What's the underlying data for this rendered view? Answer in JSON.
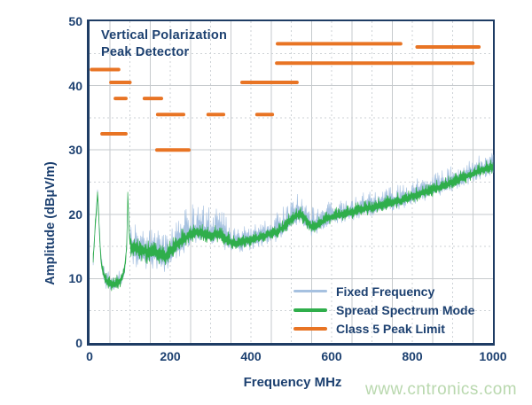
{
  "colors": {
    "navy_text": "#1c4070",
    "border": "#1e3c64",
    "orange": "#e87424",
    "green": "#2fae4b",
    "blue": "#a6c1e0",
    "grid_solid": "#c6cacd",
    "grid_dashed": "#cdd2d6",
    "watermark": "#b9d8ae",
    "background": "#ffffff"
  },
  "watermark_text": "www.cntronics.com",
  "chart_data": {
    "type": "line",
    "title_lines": [
      "Vertical Polarization",
      "Peak Detector"
    ],
    "xlabel": "Frequency MHz",
    "ylabel": "Amplitude (dBμV/m)",
    "xlim": [
      0,
      1000
    ],
    "ylim": [
      0,
      50
    ],
    "x_ticks": [
      0,
      200,
      400,
      600,
      800,
      1000
    ],
    "y_ticks": [
      0,
      10,
      20,
      30,
      40,
      50
    ],
    "grid": {
      "v_minor_step_mhz": 50,
      "h_minor_step_db": 5,
      "style": "solid majors with dashed minors"
    },
    "legend": [
      {
        "label": "Fixed Frequency",
        "color_key": "blue"
      },
      {
        "label": "Spread Spectrum Mode",
        "color_key": "green"
      },
      {
        "label": "Class 5 Peak Limit",
        "color_key": "orange"
      }
    ],
    "limit_segments": [
      {
        "f1": 5,
        "f2": 72,
        "level": 42.5
      },
      {
        "f1": 53,
        "f2": 100,
        "level": 40.5
      },
      {
        "f1": 64,
        "f2": 90,
        "level": 38
      },
      {
        "f1": 136,
        "f2": 178,
        "level": 38
      },
      {
        "f1": 31,
        "f2": 90,
        "level": 32.5
      },
      {
        "f1": 167,
        "f2": 246,
        "level": 30
      },
      {
        "f1": 169,
        "f2": 233,
        "level": 35.5
      },
      {
        "f1": 294,
        "f2": 332,
        "level": 35.5
      },
      {
        "f1": 415,
        "f2": 453,
        "level": 35.5
      },
      {
        "f1": 378,
        "f2": 514,
        "level": 40.5
      },
      {
        "f1": 466,
        "f2": 771,
        "level": 46.5
      },
      {
        "f1": 812,
        "f2": 965,
        "level": 46
      },
      {
        "f1": 464,
        "f2": 950,
        "level": 43.5
      }
    ],
    "series": [
      {
        "name": "Fixed Frequency",
        "color_key": "blue",
        "render": "noisy-band",
        "anchors": [
          [
            9,
            13
          ],
          [
            14,
            18
          ],
          [
            20,
            23.5
          ],
          [
            24,
            18
          ],
          [
            28,
            13
          ],
          [
            33,
            11
          ],
          [
            40,
            9.8
          ],
          [
            50,
            9.2
          ],
          [
            60,
            9
          ],
          [
            70,
            9.3
          ],
          [
            80,
            10
          ],
          [
            87,
            11.5
          ],
          [
            92,
            15
          ],
          [
            95,
            23.5
          ],
          [
            98,
            17
          ],
          [
            103,
            15
          ],
          [
            115,
            14.8
          ],
          [
            130,
            14.5
          ],
          [
            145,
            14
          ],
          [
            160,
            14.2
          ],
          [
            175,
            13.8
          ],
          [
            190,
            13.5
          ],
          [
            205,
            14.5
          ],
          [
            220,
            15.5
          ],
          [
            235,
            16.2
          ],
          [
            250,
            16.8
          ],
          [
            265,
            17.2
          ],
          [
            285,
            17
          ],
          [
            300,
            16.5
          ],
          [
            315,
            17
          ],
          [
            330,
            16.5
          ],
          [
            345,
            15.8
          ],
          [
            360,
            15.5
          ],
          [
            380,
            15.8
          ],
          [
            400,
            16
          ],
          [
            420,
            16.3
          ],
          [
            440,
            16.8
          ],
          [
            465,
            17.3
          ],
          [
            485,
            18.2
          ],
          [
            505,
            19.5
          ],
          [
            520,
            20
          ],
          [
            535,
            19.2
          ],
          [
            550,
            18
          ],
          [
            565,
            18.3
          ],
          [
            580,
            19
          ],
          [
            600,
            19.6
          ],
          [
            625,
            20
          ],
          [
            650,
            20.3
          ],
          [
            675,
            20.8
          ],
          [
            700,
            21
          ],
          [
            725,
            21.4
          ],
          [
            750,
            21.8
          ],
          [
            775,
            22.2
          ],
          [
            800,
            22.8
          ],
          [
            825,
            23.3
          ],
          [
            850,
            23.8
          ],
          [
            875,
            24.3
          ],
          [
            900,
            25
          ],
          [
            925,
            25.6
          ],
          [
            950,
            26.3
          ],
          [
            975,
            27
          ],
          [
            1000,
            27.3
          ]
        ],
        "noise_regions": [
          [
            9,
            30,
            1.2,
            1.0
          ],
          [
            30,
            88,
            1.7,
            1.3
          ],
          [
            88,
            102,
            1.2,
            1.0
          ],
          [
            102,
            235,
            3.6,
            3.0
          ],
          [
            235,
            345,
            4.8,
            1.8
          ],
          [
            345,
            460,
            2.4,
            1.6
          ],
          [
            460,
            565,
            3.4,
            1.7
          ],
          [
            565,
            1001,
            2.6,
            1.4
          ]
        ]
      },
      {
        "name": "Spread Spectrum Mode",
        "color_key": "green",
        "render": "noisy-band",
        "anchors": [
          [
            9,
            13
          ],
          [
            14,
            18
          ],
          [
            20,
            23.5
          ],
          [
            24,
            18
          ],
          [
            28,
            13
          ],
          [
            33,
            11
          ],
          [
            40,
            9.8
          ],
          [
            50,
            9.2
          ],
          [
            60,
            9
          ],
          [
            70,
            9.3
          ],
          [
            80,
            10
          ],
          [
            87,
            11.5
          ],
          [
            92,
            15
          ],
          [
            95,
            23.5
          ],
          [
            98,
            17
          ],
          [
            103,
            15
          ],
          [
            115,
            14.8
          ],
          [
            130,
            14.5
          ],
          [
            145,
            14
          ],
          [
            160,
            14.2
          ],
          [
            175,
            13.8
          ],
          [
            190,
            13.5
          ],
          [
            205,
            14.5
          ],
          [
            220,
            15.5
          ],
          [
            235,
            16.2
          ],
          [
            250,
            16.8
          ],
          [
            265,
            17.2
          ],
          [
            285,
            17
          ],
          [
            300,
            16.5
          ],
          [
            315,
            17
          ],
          [
            330,
            16.5
          ],
          [
            345,
            15.8
          ],
          [
            360,
            15.5
          ],
          [
            380,
            15.8
          ],
          [
            400,
            16
          ],
          [
            420,
            16.3
          ],
          [
            440,
            16.8
          ],
          [
            465,
            17.3
          ],
          [
            485,
            18.2
          ],
          [
            505,
            19.5
          ],
          [
            520,
            20
          ],
          [
            535,
            19.2
          ],
          [
            550,
            18
          ],
          [
            565,
            18.3
          ],
          [
            580,
            19
          ],
          [
            600,
            19.6
          ],
          [
            625,
            20
          ],
          [
            650,
            20.3
          ],
          [
            675,
            20.8
          ],
          [
            700,
            21
          ],
          [
            725,
            21.4
          ],
          [
            750,
            21.8
          ],
          [
            775,
            22.2
          ],
          [
            800,
            22.8
          ],
          [
            825,
            23.3
          ],
          [
            850,
            23.8
          ],
          [
            875,
            24.3
          ],
          [
            900,
            25
          ],
          [
            925,
            25.6
          ],
          [
            950,
            26.3
          ],
          [
            975,
            27
          ],
          [
            1000,
            27.3
          ]
        ],
        "noise_regions": [
          [
            9,
            30,
            0.9,
            0.9
          ],
          [
            30,
            88,
            1.4,
            1.1
          ],
          [
            88,
            102,
            1.0,
            0.9
          ],
          [
            102,
            235,
            1.9,
            1.9
          ],
          [
            235,
            345,
            1.5,
            1.3
          ],
          [
            345,
            460,
            1.3,
            1.1
          ],
          [
            460,
            565,
            1.5,
            1.2
          ],
          [
            565,
            1001,
            1.4,
            1.1
          ]
        ]
      }
    ]
  }
}
